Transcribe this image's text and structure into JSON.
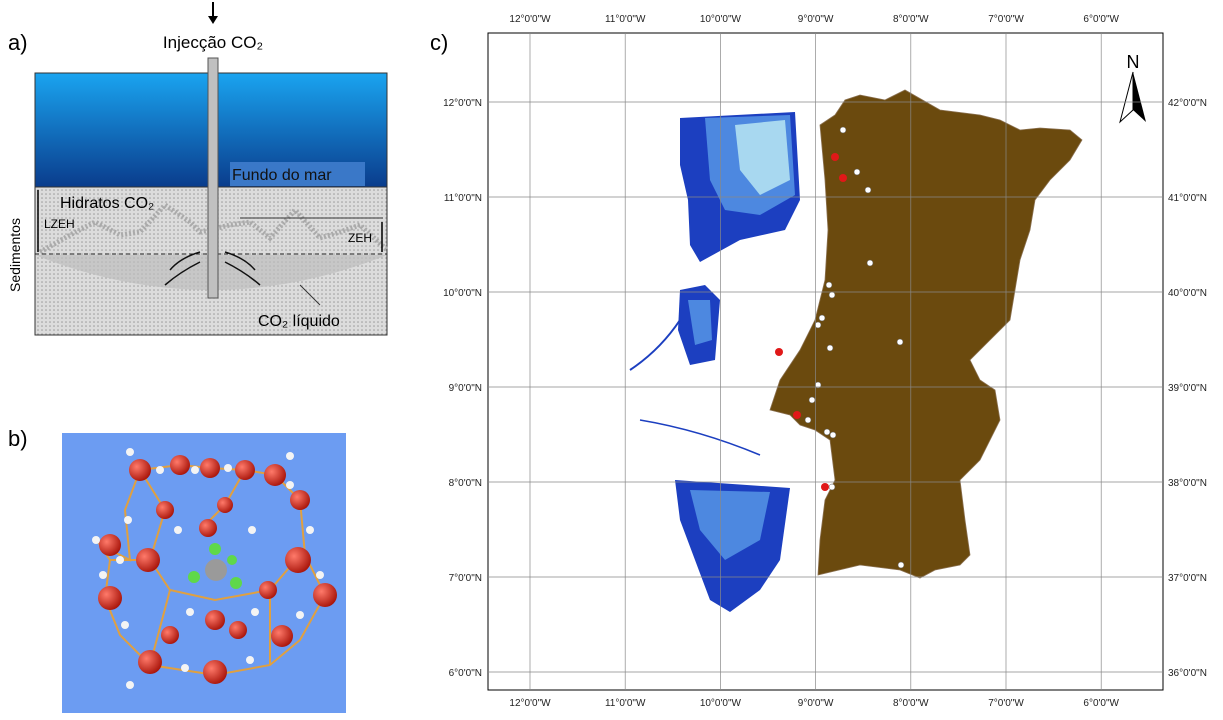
{
  "panel_a": {
    "label": "a)",
    "injection": "Injecção CO₂",
    "seabed": "Fundo do mar",
    "hydrates": "Hidratos CO₂",
    "lzeh": "LZEH",
    "zeh": "ZEH",
    "sediments": "Sedimentos",
    "liquid": "CO₂ líquido"
  },
  "panel_b": {
    "label": "b)"
  },
  "panel_c": {
    "label": "c)",
    "north": "N",
    "lon_labels": [
      "12°0'0\"W",
      "11°0'0\"W",
      "10°0'0\"W",
      "9°0'0\"W",
      "8°0'0\"W",
      "7°0'0\"W",
      "6°0'0\"W"
    ],
    "lat_labels_left": [
      "12°0'0\"N",
      "11°0'0\"N",
      "10°0'0\"N",
      "9°0'0\"N",
      "8°0'0\"N",
      "7°0'0\"N",
      "6°0'0\"N"
    ],
    "lat_labels_right": [
      "42°0'0\"N",
      "41°0'0\"N",
      "40°0'0\"N",
      "39°0'0\"N",
      "38°0'0\"N",
      "37°0'0\"N",
      "36°0'0\"N"
    ]
  }
}
